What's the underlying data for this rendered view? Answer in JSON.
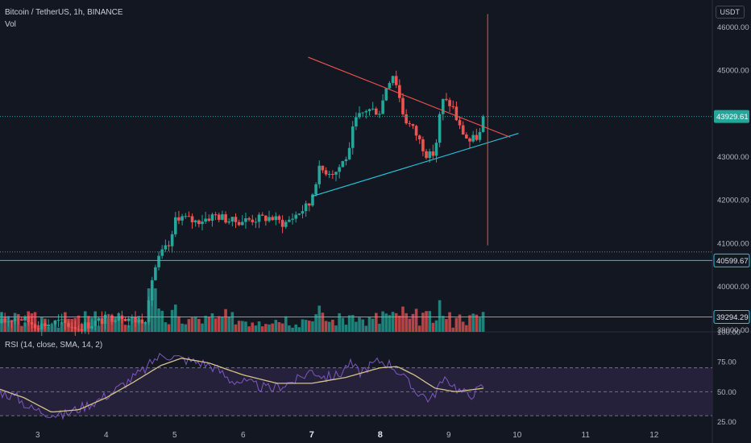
{
  "header": {
    "symbol": "Bitcoin / TetherUS, 1h, BINANCE",
    "volume_label": "Vol",
    "currency_button": "USDT"
  },
  "rsi_panel": {
    "label": "RSI (14, close, SMA, 14, 2)"
  },
  "colors": {
    "background": "#131722",
    "up": "#26a69a",
    "down": "#ef5350",
    "horizontal_line": "#26c6da",
    "trend_support": "#26c6da",
    "trend_resistance": "#ef5350",
    "vertical_marker": "#ef5350",
    "rsi_line": "#7e57c2",
    "rsi_ma": "#d4c38a",
    "rsi_band": "#2a2340",
    "last_price_tag": "#26a69a"
  },
  "chart_data": [
    {
      "type": "candlestick",
      "title": "Bitcoin / TetherUS, 1h, BINANCE",
      "x_tick_labels": [
        "3",
        "4",
        "5",
        "6",
        "7",
        "8",
        "9",
        "10",
        "11",
        "12"
      ],
      "x_ticks": [
        3,
        4,
        5,
        6,
        7,
        8,
        9,
        10,
        11,
        12
      ],
      "x_range": [
        2.45,
        12.85
      ],
      "y_range": [
        38950,
        46400
      ],
      "y_tick_labels": [
        "39000.00",
        "40000.00",
        "41000.00",
        "42000.00",
        "43000.00",
        "45000.00",
        "46000.00"
      ],
      "y_ticks": [
        39000,
        40000,
        41000,
        42000,
        43000,
        45000,
        46000
      ],
      "price_tags": [
        {
          "label": "43929.61",
          "value": 43929.61,
          "style": "last-price"
        },
        {
          "label": "40599.67",
          "value": 40599.67,
          "style": "line"
        },
        {
          "label": "39294.29",
          "value": 39294.29,
          "style": "line"
        }
      ],
      "horizontal_lines": [
        40599.67,
        39294.29
      ],
      "dotted_lines": [
        43929.61,
        40799
      ],
      "trendlines": [
        {
          "name": "support",
          "from": {
            "x": 7.0,
            "y": 42080
          },
          "to": {
            "x": 10.02,
            "y": 43540
          }
        },
        {
          "name": "resistance",
          "from": {
            "x": 6.95,
            "y": 45300
          },
          "to": {
            "x": 9.9,
            "y": 43450
          }
        }
      ],
      "vertical_marker": {
        "x": 9.57,
        "y_from": 40950,
        "y_to": 46300
      },
      "anchors": [
        {
          "x": 2.45,
          "price": 39150
        },
        {
          "x": 2.7,
          "price": 39300
        },
        {
          "x": 3.0,
          "price": 39100
        },
        {
          "x": 3.3,
          "price": 39180
        },
        {
          "x": 3.6,
          "price": 39050
        },
        {
          "x": 3.9,
          "price": 39200
        },
        {
          "x": 4.2,
          "price": 39350
        },
        {
          "x": 4.45,
          "price": 39200
        },
        {
          "x": 4.6,
          "price": 39300
        },
        {
          "x": 4.68,
          "price": 40300
        },
        {
          "x": 4.8,
          "price": 40750
        },
        {
          "x": 4.95,
          "price": 41000
        },
        {
          "x": 5.02,
          "price": 41650
        },
        {
          "x": 5.3,
          "price": 41500
        },
        {
          "x": 5.6,
          "price": 41650
        },
        {
          "x": 5.85,
          "price": 41500
        },
        {
          "x": 6.1,
          "price": 41550
        },
        {
          "x": 6.4,
          "price": 41600
        },
        {
          "x": 6.6,
          "price": 41450
        },
        {
          "x": 6.8,
          "price": 41700
        },
        {
          "x": 6.97,
          "price": 41900
        },
        {
          "x": 7.1,
          "price": 42700
        },
        {
          "x": 7.35,
          "price": 42650
        },
        {
          "x": 7.55,
          "price": 43100
        },
        {
          "x": 7.62,
          "price": 43800
        },
        {
          "x": 7.8,
          "price": 44100
        },
        {
          "x": 8.0,
          "price": 44050
        },
        {
          "x": 8.1,
          "price": 44700
        },
        {
          "x": 8.2,
          "price": 44950
        },
        {
          "x": 8.35,
          "price": 43900
        },
        {
          "x": 8.5,
          "price": 43600
        },
        {
          "x": 8.7,
          "price": 43000
        },
        {
          "x": 8.8,
          "price": 43100
        },
        {
          "x": 8.9,
          "price": 44300
        },
        {
          "x": 9.05,
          "price": 44200
        },
        {
          "x": 9.15,
          "price": 43700
        },
        {
          "x": 9.3,
          "price": 43350
        },
        {
          "x": 9.45,
          "price": 43500
        },
        {
          "x": 9.52,
          "price": 43929.61
        }
      ],
      "rsi": {
        "y_range": [
          22,
          100
        ],
        "y_tick_labels": [
          "100.00",
          "75.00",
          "50.00",
          "25.00"
        ],
        "y_ticks": [
          100,
          75,
          50,
          25
        ],
        "band": [
          30,
          70
        ],
        "midline": 50,
        "line_anchors": [
          {
            "x": 2.45,
            "v": 50
          },
          {
            "x": 2.7,
            "v": 45
          },
          {
            "x": 2.9,
            "v": 36
          },
          {
            "x": 3.1,
            "v": 33
          },
          {
            "x": 3.35,
            "v": 30
          },
          {
            "x": 3.6,
            "v": 36
          },
          {
            "x": 3.85,
            "v": 42
          },
          {
            "x": 4.1,
            "v": 50
          },
          {
            "x": 4.3,
            "v": 58
          },
          {
            "x": 4.45,
            "v": 64
          },
          {
            "x": 4.6,
            "v": 70
          },
          {
            "x": 4.7,
            "v": 77
          },
          {
            "x": 4.85,
            "v": 81
          },
          {
            "x": 5.0,
            "v": 79
          },
          {
            "x": 5.2,
            "v": 76
          },
          {
            "x": 5.4,
            "v": 74
          },
          {
            "x": 5.6,
            "v": 70
          },
          {
            "x": 5.8,
            "v": 60
          },
          {
            "x": 6.0,
            "v": 58
          },
          {
            "x": 6.2,
            "v": 55
          },
          {
            "x": 6.4,
            "v": 52
          },
          {
            "x": 6.6,
            "v": 56
          },
          {
            "x": 6.8,
            "v": 60
          },
          {
            "x": 7.0,
            "v": 68
          },
          {
            "x": 7.2,
            "v": 62
          },
          {
            "x": 7.4,
            "v": 64
          },
          {
            "x": 7.55,
            "v": 74
          },
          {
            "x": 7.7,
            "v": 66
          },
          {
            "x": 7.85,
            "v": 72
          },
          {
            "x": 8.0,
            "v": 76
          },
          {
            "x": 8.15,
            "v": 73
          },
          {
            "x": 8.3,
            "v": 65
          },
          {
            "x": 8.45,
            "v": 54
          },
          {
            "x": 8.6,
            "v": 48
          },
          {
            "x": 8.75,
            "v": 43
          },
          {
            "x": 8.85,
            "v": 55
          },
          {
            "x": 9.0,
            "v": 60
          },
          {
            "x": 9.15,
            "v": 51
          },
          {
            "x": 9.3,
            "v": 47
          },
          {
            "x": 9.45,
            "v": 52
          },
          {
            "x": 9.52,
            "v": 56
          }
        ],
        "ma_anchors": [
          {
            "x": 2.45,
            "v": 52
          },
          {
            "x": 2.8,
            "v": 45
          },
          {
            "x": 3.2,
            "v": 33
          },
          {
            "x": 3.6,
            "v": 35
          },
          {
            "x": 4.0,
            "v": 45
          },
          {
            "x": 4.4,
            "v": 58
          },
          {
            "x": 4.8,
            "v": 72
          },
          {
            "x": 5.1,
            "v": 78
          },
          {
            "x": 5.5,
            "v": 74
          },
          {
            "x": 6.0,
            "v": 64
          },
          {
            "x": 6.5,
            "v": 57
          },
          {
            "x": 7.0,
            "v": 57
          },
          {
            "x": 7.5,
            "v": 62
          },
          {
            "x": 8.0,
            "v": 70
          },
          {
            "x": 8.25,
            "v": 71
          },
          {
            "x": 8.5,
            "v": 64
          },
          {
            "x": 8.8,
            "v": 53
          },
          {
            "x": 9.1,
            "v": 50
          },
          {
            "x": 9.52,
            "v": 53
          }
        ]
      }
    }
  ]
}
